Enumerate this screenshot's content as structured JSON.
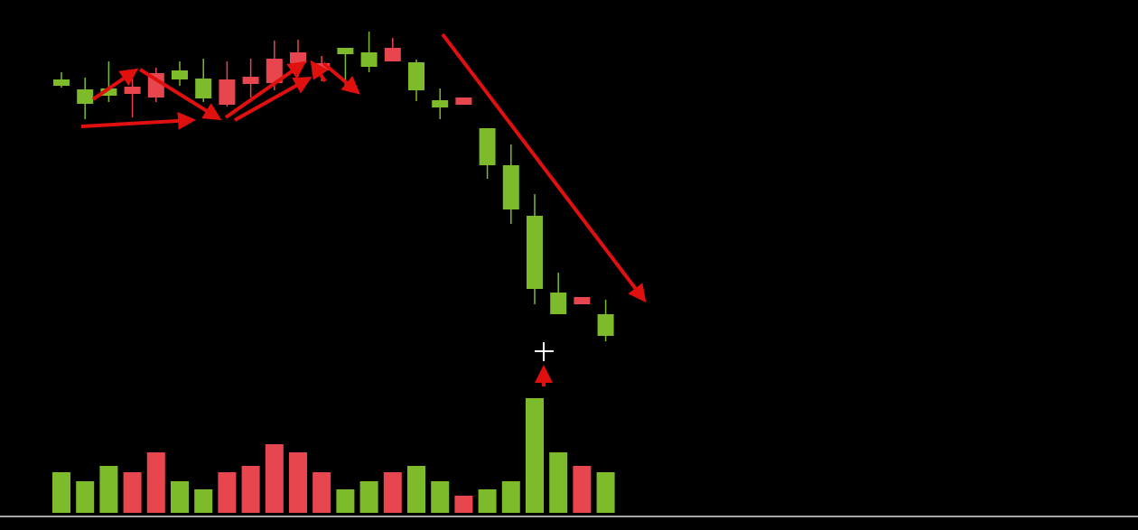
{
  "chart_data": {
    "type": "candlestick",
    "up_color": "#e8464f",
    "down_color": "#7dbb2a",
    "ylim": [
      200,
      600
    ],
    "open": [
      512,
      501,
      502,
      496,
      492,
      522,
      513,
      484,
      507,
      508,
      530,
      522,
      547,
      542,
      532,
      531,
      489,
      484,
      458,
      417,
      361,
      276,
      263,
      252
    ],
    "high": [
      520,
      514,
      532,
      518,
      525,
      532,
      535,
      532,
      535,
      555,
      556,
      538,
      547,
      565,
      558,
      534,
      502,
      492,
      458,
      440,
      385,
      298,
      271,
      268
    ],
    "low": [
      503,
      468,
      487,
      470,
      487,
      505,
      487,
      482,
      492,
      500,
      515,
      510,
      502,
      520,
      532,
      488,
      468,
      484,
      402,
      352,
      263,
      252,
      263,
      222
    ],
    "close": [
      505,
      485,
      494,
      504,
      519,
      512,
      491,
      512,
      515,
      535,
      542,
      530,
      540,
      526,
      547,
      500,
      481,
      492,
      417,
      368,
      280,
      252,
      271,
      228
    ],
    "volume": {
      "ylim": [
        0,
        140
      ],
      "values": [
        45,
        35,
        52,
        45,
        67,
        35,
        26,
        45,
        52,
        76,
        67,
        45,
        26,
        35,
        45,
        52,
        35,
        19,
        26,
        35,
        127,
        67,
        52,
        45
      ],
      "colors": [
        "#7dbb2a",
        "#7dbb2a",
        "#7dbb2a",
        "#e8464f",
        "#e8464f",
        "#7dbb2a",
        "#7dbb2a",
        "#e8464f",
        "#e8464f",
        "#e8464f",
        "#e8464f",
        "#e8464f",
        "#7dbb2a",
        "#7dbb2a",
        "#e8464f",
        "#7dbb2a",
        "#7dbb2a",
        "#e8464f",
        "#7dbb2a",
        "#7dbb2a",
        "#7dbb2a",
        "#7dbb2a",
        "#e8464f",
        "#7dbb2a"
      ]
    }
  }
}
